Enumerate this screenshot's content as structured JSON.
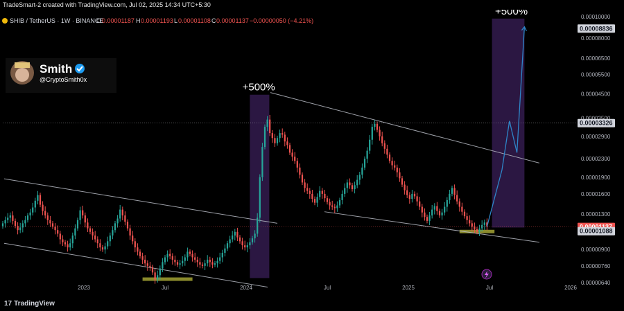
{
  "header": {
    "created_text": "TradeSmart-2 created with TradingView.com, Jul 02, 2025 14:34 UTC+5:30"
  },
  "legend": {
    "symbol": "SHIB / TetherUS · 1W · BINANCE",
    "open_label": "O",
    "open_value": "0.00001187",
    "high_label": "H",
    "high_value": "0.00001193",
    "low_label": "L",
    "low_value": "0.00001108",
    "close_label": "C",
    "close_value": "0.00001137",
    "change_value": "−0.00000050 (−4.21%)"
  },
  "watermark": {
    "name": "Smith",
    "handle": "@CryptoSmith0x"
  },
  "annotations": {
    "pct_left": "+500%",
    "pct_right": "+500%"
  },
  "price_badges": {
    "target": "0.00008836",
    "resistance": "0.00003326",
    "current": "0.00001137",
    "support": "0.00001088"
  },
  "footer": {
    "brand": "TradingView"
  },
  "colors": {
    "up": "#26a69a",
    "down": "#ef5350",
    "box": "#3a1f58",
    "channel": "#b9bcc6",
    "projection": "#2e86c8",
    "support_zone": "#8a8a2c"
  },
  "chart_data": {
    "type": "candlestick",
    "title": "SHIB / TetherUS · 1W · BINANCE",
    "y_scale": "log",
    "ylim": [
      5.7e-06,
      0.0001
    ],
    "y_ticks": [
      "0.00010000",
      "0.00008000",
      "0.00006500",
      "0.00005500",
      "0.00004500",
      "0.00003500",
      "0.00002900",
      "0.00002300",
      "0.00001900",
      "0.00001600",
      "0.00001300",
      "0.00000900",
      "0.00000760",
      "0.00000640"
    ],
    "x_ticks": [
      "2023",
      "Jul",
      "2024",
      "Jul",
      "2025",
      "Jul",
      "2026"
    ],
    "series": [
      {
        "type": "candles",
        "x_range": [
          "2022-07",
          "2025-07"
        ],
        "values_approx_close": [
          1.18e-05,
          1.22e-05,
          1.25e-05,
          1.28e-05,
          1.21e-05,
          1.15e-05,
          1.1e-05,
          1.13e-05,
          1.18e-05,
          1.22e-05,
          1.28e-05,
          1.32e-05,
          1.39e-05,
          1.49e-05,
          1.58e-05,
          1.43e-05,
          1.34e-05,
          1.28e-05,
          1.22e-05,
          1.18e-05,
          1.14e-05,
          1.1e-05,
          1.06e-05,
          1e-05,
          9.7e-06,
          9.5e-06,
          9.2e-06,
          9.6e-06,
          1.04e-05,
          1.12e-05,
          1.22e-05,
          1.35e-05,
          1.28e-05,
          1.19e-05,
          1.12e-05,
          1.08e-05,
          1.04e-05,
          1e-05,
          9.6e-06,
          9.2e-06,
          9e-06,
          9.3e-06,
          9.8e-06,
          1.04e-05,
          1.1e-05,
          1.18e-05,
          1.24e-05,
          1.36e-05,
          1.28e-05,
          1.2e-05,
          1.12e-05,
          1.04e-05,
          9.8e-06,
          9.2e-06,
          8.8e-06,
          8.4e-06,
          8.1e-06,
          7.8e-06,
          7.6e-06,
          7.5e-06,
          7.1e-06,
          6.6e-06,
          6.9e-06,
          7.4e-06,
          7.9e-06,
          8.3e-06,
          8.6e-06,
          8.4e-06,
          8.1e-06,
          7.9e-06,
          7.7e-06,
          7.8e-06,
          8e-06,
          8.3e-06,
          8.8e-06,
          8.6e-06,
          8.3e-06,
          8.1e-06,
          7.9e-06,
          7.7e-06,
          7.6e-06,
          7.8e-06,
          8.1e-06,
          7.9e-06,
          7.7e-06,
          7.8e-06,
          8e-06,
          8.3e-06,
          8.7e-06,
          9.1e-06,
          9.6e-06,
          1e-05,
          1.04e-05,
          1.08e-05,
          1.02e-05,
          9.8e-06,
          9.4e-06,
          9.2e-06,
          9.4e-06,
          9.7e-06,
          1.01e-05,
          1.06e-05,
          1.25e-05,
          1.9e-05,
          2.6e-05,
          3.2e-05,
          3.45e-05,
          3e-05,
          2.85e-05,
          2.7e-05,
          2.85e-05,
          3e-05,
          2.95e-05,
          2.75e-05,
          2.65e-05,
          2.45e-05,
          2.35e-05,
          2.25e-05,
          2.1e-05,
          1.95e-05,
          1.8e-05,
          1.7e-05,
          1.65e-05,
          1.6e-05,
          1.52e-05,
          1.46e-05,
          1.55e-05,
          1.65e-05,
          1.6e-05,
          1.53e-05,
          1.47e-05,
          1.42e-05,
          1.4e-05,
          1.38e-05,
          1.42e-05,
          1.5e-05,
          1.6e-05,
          1.7e-05,
          1.8e-05,
          1.75e-05,
          1.68e-05,
          1.75e-05,
          1.85e-05,
          1.95e-05,
          2.1e-05,
          2.3e-05,
          2.5e-05,
          2.8e-05,
          3.2e-05,
          3.3e-05,
          3.1e-05,
          2.9e-05,
          2.7e-05,
          2.55e-05,
          2.4e-05,
          2.25e-05,
          2.15e-05,
          2.1e-05,
          2e-05,
          1.88e-05,
          1.76e-05,
          1.66e-05,
          1.58e-05,
          1.52e-05,
          1.6e-05,
          1.56e-05,
          1.48e-05,
          1.4e-05,
          1.32e-05,
          1.26e-05,
          1.21e-05,
          1.28e-05,
          1.36e-05,
          1.41e-05,
          1.34e-05,
          1.28e-05,
          1.32e-05,
          1.4e-05,
          1.5e-05,
          1.6e-05,
          1.7e-05,
          1.58e-05,
          1.48e-05,
          1.4e-05,
          1.33e-05,
          1.27e-05,
          1.22e-05,
          1.18e-05,
          1.14e-05,
          1.11e-05,
          1.08e-05,
          1.12e-05,
          1.16e-05,
          1.19e-05,
          1.14e-05
        ]
      }
    ],
    "projection_path_values": [
      1.14e-05,
      2.05e-05,
      3.4e-05,
      2.45e-05,
      9e-05
    ],
    "channel_lines_note": "descending channel upper and lower boundary lines drawn across the chart"
  }
}
